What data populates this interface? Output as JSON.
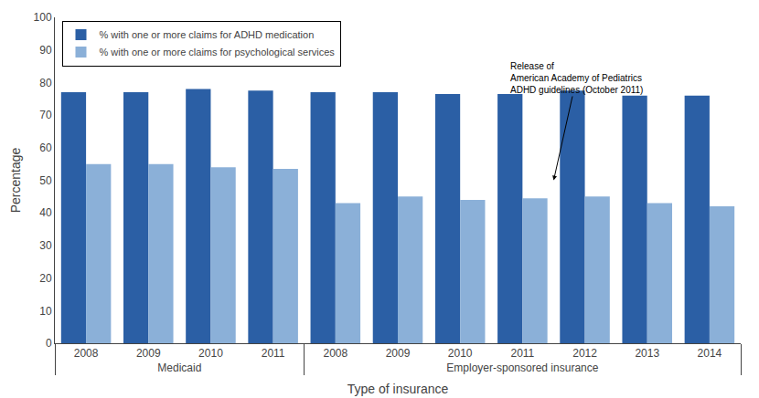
{
  "chart_data": {
    "type": "bar",
    "xlabel": "Type of insurance",
    "ylabel": "Percentage",
    "categories": [
      [
        "Medicaid",
        "2008"
      ],
      [
        "Medicaid",
        "2009"
      ],
      [
        "Medicaid",
        "2010"
      ],
      [
        "Medicaid",
        "2011"
      ],
      [
        "Employer-sponsored insurance",
        "2008"
      ],
      [
        "Employer-sponsored insurance",
        "2009"
      ],
      [
        "Employer-sponsored insurance",
        "2010"
      ],
      [
        "Employer-sponsored insurance",
        "2011"
      ],
      [
        "Employer-sponsored insurance",
        "2012"
      ],
      [
        "Employer-sponsored insurance",
        "2013"
      ],
      [
        "Employer-sponsored insurance",
        "2014"
      ]
    ],
    "series": [
      {
        "name": "% with one or more claims for ADHD medication",
        "color": "#2B5FA5",
        "values": [
          77,
          77,
          78,
          77.5,
          77,
          77,
          76.5,
          76.5,
          77.5,
          76,
          76
        ]
      },
      {
        "name": "% with one or more claims for psychological services",
        "color": "#8BB0D8",
        "values": [
          55,
          55,
          54,
          53.5,
          43,
          45,
          44,
          44.5,
          45,
          43,
          42
        ]
      }
    ],
    "ylim": [
      0,
      100
    ],
    "yticks": [
      0,
      10,
      20,
      30,
      40,
      50,
      60,
      70,
      80,
      90,
      100
    ],
    "grid": false,
    "legend": "upper left",
    "annotations": [
      "Release of\nAmerican Academy of Pediatrics\nADHD guidelines (October 2011)"
    ]
  }
}
